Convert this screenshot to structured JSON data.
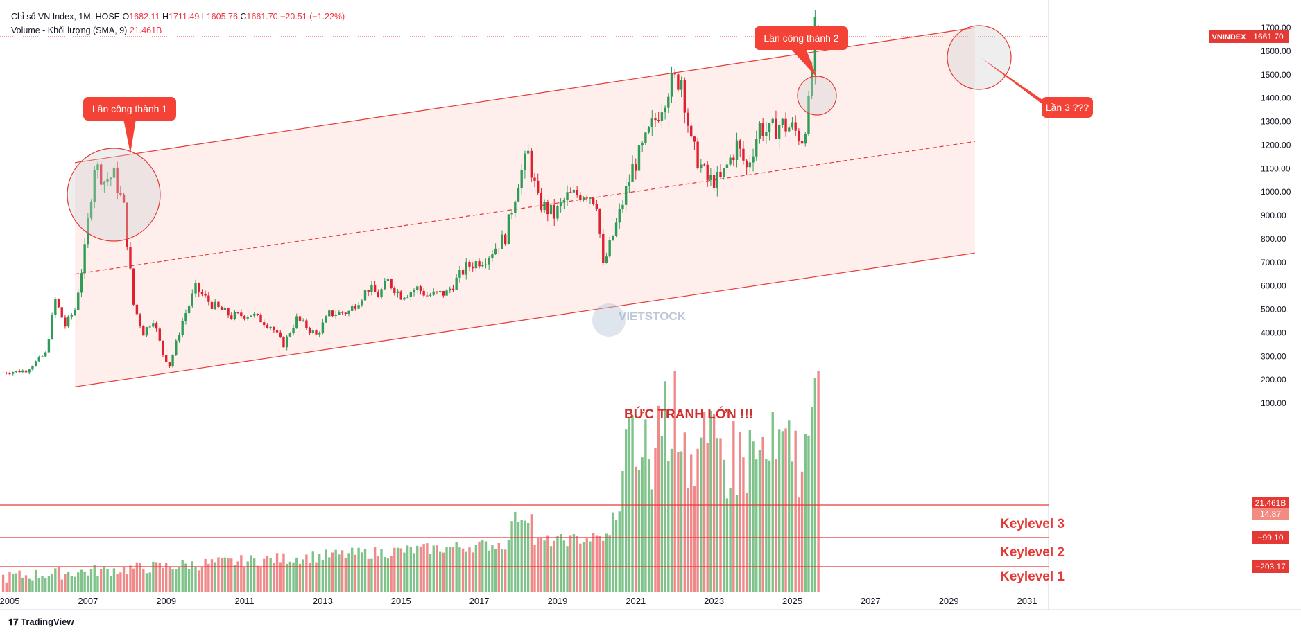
{
  "legend": {
    "line1_name": "Chỉ số VN Index, 1M, HOSE",
    "open_label": "O",
    "open": "1682.11",
    "high_label": "H",
    "high": "1711.49",
    "low_label": "L",
    "low": "1605.76",
    "close_label": "C",
    "close": "1661.70",
    "change": "−20.51 (−1.22%)",
    "line2_name": "Volume - Khối lượng (SMA, 9)",
    "line2_value": "21.461B"
  },
  "branding": {
    "tradingview": "TradingView",
    "watermark": "VIETSTOCK"
  },
  "colors": {
    "up": "#26a69a",
    "down": "#ef5350",
    "candle_up": "#2e9c56",
    "candle_down": "#e0202e",
    "channel_line": "#e53935",
    "channel_fill": "#fde9e7",
    "callout_bg": "#f44336",
    "vol_up": "#7fc38a",
    "vol_down": "#f08a8a"
  },
  "annotations": {
    "callout1": "Lần công thành 1",
    "callout2": "Lần công thành 2",
    "callout3": "Lần 3 ???",
    "headline": "BỨC TRANH LỚN !!!",
    "keylevel3": "Keylevel 3",
    "keylevel2": "Keylevel 2",
    "keylevel1": "Keylevel 1"
  },
  "chart_data": {
    "type": "candlestick",
    "symbol": "VNINDEX",
    "last_price": "1661.70",
    "y_ticks": [
      100,
      200,
      300,
      400,
      500,
      600,
      700,
      800,
      900,
      1000,
      1100,
      1200,
      1300,
      1400,
      1500,
      1600,
      1700
    ],
    "y_tick_labels": [
      "100.00",
      "200.00",
      "300.00",
      "400.00",
      "500.00",
      "600.00",
      "700.00",
      "800.00",
      "900.00",
      "1000.00",
      "1100.00",
      "1200.00",
      "1300.00",
      "1400.00",
      "1500.00",
      "1600.00",
      "1700.00"
    ],
    "x_ticks": [
      "2005",
      "2007",
      "2009",
      "2011",
      "2013",
      "2015",
      "2017",
      "2019",
      "2021",
      "2023",
      "2025",
      "2027",
      "2029",
      "2031"
    ],
    "price_path": [
      [
        "2004-11",
        230
      ],
      [
        "2005-06",
        240
      ],
      [
        "2005-12",
        310
      ],
      [
        "2006-03",
        540
      ],
      [
        "2006-06",
        430
      ],
      [
        "2006-09",
        500
      ],
      [
        "2006-12",
        750
      ],
      [
        "2007-03",
        1120
      ],
      [
        "2007-06",
        1050
      ],
      [
        "2007-09",
        1070
      ],
      [
        "2007-12",
        930
      ],
      [
        "2008-03",
        520
      ],
      [
        "2008-06",
        400
      ],
      [
        "2008-09",
        460
      ],
      [
        "2008-12",
        310
      ],
      [
        "2009-02",
        260
      ],
      [
        "2009-06",
        450
      ],
      [
        "2009-10",
        590
      ],
      [
        "2010-03",
        520
      ],
      [
        "2010-09",
        470
      ],
      [
        "2011-03",
        480
      ],
      [
        "2011-09",
        430
      ],
      [
        "2012-01",
        350
      ],
      [
        "2012-05",
        460
      ],
      [
        "2012-11",
        390
      ],
      [
        "2013-03",
        480
      ],
      [
        "2013-09",
        490
      ],
      [
        "2014-03",
        590
      ],
      [
        "2014-06",
        560
      ],
      [
        "2014-09",
        620
      ],
      [
        "2015-01",
        560
      ],
      [
        "2015-06",
        590
      ],
      [
        "2015-09",
        560
      ],
      [
        "2016-03",
        570
      ],
      [
        "2016-09",
        680
      ],
      [
        "2017-03",
        720
      ],
      [
        "2017-09",
        810
      ],
      [
        "2018-01",
        1050
      ],
      [
        "2018-04",
        1160
      ],
      [
        "2018-07",
        960
      ],
      [
        "2018-12",
        900
      ],
      [
        "2019-04",
        980
      ],
      [
        "2019-10",
        1000
      ],
      [
        "2020-01",
        960
      ],
      [
        "2020-03",
        680
      ],
      [
        "2020-07",
        860
      ],
      [
        "2020-12",
        1100
      ],
      [
        "2021-03",
        1180
      ],
      [
        "2021-07",
        1310
      ],
      [
        "2021-11",
        1450
      ],
      [
        "2022-03",
        1490
      ],
      [
        "2022-06",
        1200
      ],
      [
        "2022-11",
        1050
      ],
      [
        "2023-03",
        1050
      ],
      [
        "2023-08",
        1200
      ],
      [
        "2023-11",
        1100
      ],
      [
        "2024-03",
        1280
      ],
      [
        "2024-06",
        1250
      ],
      [
        "2024-09",
        1290
      ],
      [
        "2025-01",
        1270
      ],
      [
        "2025-04",
        1230
      ],
      [
        "2025-06",
        1360
      ],
      [
        "2025-08",
        1680
      ],
      [
        "2025-09",
        1661.7
      ]
    ],
    "channel": {
      "upper": [
        [
          "2006-09",
          1125
        ],
        [
          "2029-09",
          1700
        ]
      ],
      "middle": [
        [
          "2006-09",
          650
        ],
        [
          "2029-09",
          1215
        ]
      ],
      "lower": [
        [
          "2006-09",
          170
        ],
        [
          "2029-09",
          740
        ]
      ]
    },
    "volume": {
      "sma_period": 9,
      "last": "21.461B",
      "axis_labels": [
        "21.461B",
        "14.87",
        "−99.10",
        "−203.17"
      ]
    },
    "title": "",
    "xlabel": "",
    "ylabel": ""
  }
}
